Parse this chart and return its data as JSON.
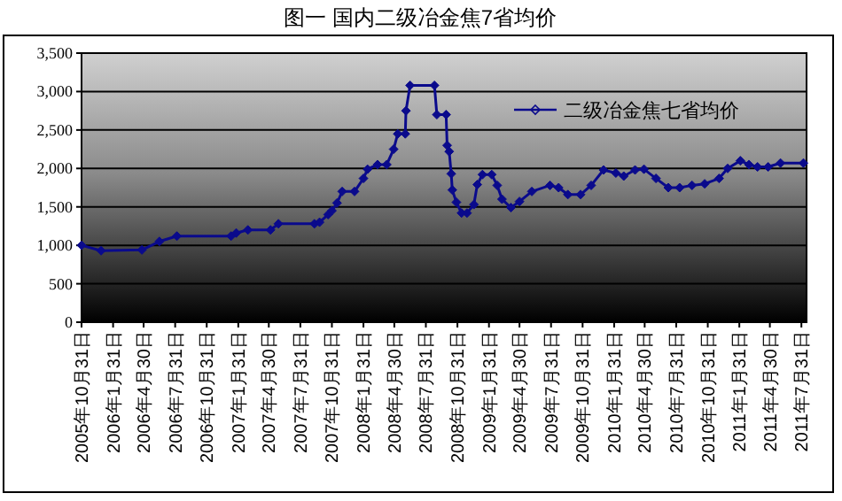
{
  "chart_data": {
    "type": "line",
    "title": "图一 国内二级冶金焦7省均价",
    "x": [
      "2005-10-31",
      "2005-12-27",
      "2006-04-25",
      "2006-06-15",
      "2006-08-05",
      "2007-01-10",
      "2007-01-25",
      "2007-02-28",
      "2007-05-05",
      "2007-05-28",
      "2007-09-10",
      "2007-09-25",
      "2007-10-20",
      "2007-10-31",
      "2007-11-15",
      "2007-11-30",
      "2008-01-05",
      "2008-01-31",
      "2008-02-12",
      "2008-03-12",
      "2008-04-08",
      "2008-04-28",
      "2008-05-10",
      "2008-06-01",
      "2008-06-03",
      "2008-06-15",
      "2008-08-25",
      "2008-09-01",
      "2008-09-28",
      "2008-10-01",
      "2008-10-07",
      "2008-10-13",
      "2008-10-16",
      "2008-10-28",
      "2008-11-12",
      "2008-11-28",
      "2008-12-18",
      "2008-12-28",
      "2009-01-12",
      "2009-02-08",
      "2009-02-24",
      "2009-03-10",
      "2009-04-05",
      "2009-04-30",
      "2009-06-05",
      "2009-07-28",
      "2009-08-22",
      "2009-09-18",
      "2009-10-25",
      "2009-11-25",
      "2009-12-31",
      "2010-02-05",
      "2010-02-28",
      "2010-04-02",
      "2010-04-28",
      "2010-06-02",
      "2010-07-08",
      "2010-08-10",
      "2010-09-15",
      "2010-10-22",
      "2010-12-03",
      "2010-12-28",
      "2011-02-03",
      "2011-02-28",
      "2011-03-25",
      "2011-04-25",
      "2011-05-31",
      "2011-08-06"
    ],
    "series": [
      {
        "name": "二级冶金焦七省均价",
        "color": "#0a0a8c",
        "values": [
          1000,
          930,
          940,
          1050,
          1120,
          1120,
          1160,
          1200,
          1200,
          1280,
          1280,
          1300,
          1400,
          1450,
          1550,
          1700,
          1700,
          1870,
          1990,
          2050,
          2050,
          2250,
          2450,
          2450,
          2750,
          3080,
          3080,
          2700,
          2700,
          2300,
          2220,
          1930,
          1720,
          1560,
          1420,
          1420,
          1530,
          1790,
          1920,
          1920,
          1780,
          1600,
          1490,
          1570,
          1700,
          1780,
          1750,
          1660,
          1660,
          1780,
          1980,
          1940,
          1900,
          1980,
          1990,
          1870,
          1750,
          1750,
          1780,
          1800,
          1870,
          2000,
          2100,
          2050,
          2020,
          2020,
          2070,
          2070
        ]
      }
    ],
    "xlim": [
      "2005-10-31",
      "2011-08-15"
    ],
    "xticks": [
      {
        "value": "2005-10-31",
        "label": "2005年10月31日"
      },
      {
        "value": "2006-01-31",
        "label": "2006年1月31日"
      },
      {
        "value": "2006-04-30",
        "label": "2006年4月30日"
      },
      {
        "value": "2006-07-31",
        "label": "2006年7月31日"
      },
      {
        "value": "2006-10-31",
        "label": "2006年10月31日"
      },
      {
        "value": "2007-01-31",
        "label": "2007年1月31日"
      },
      {
        "value": "2007-04-30",
        "label": "2007年4月30日"
      },
      {
        "value": "2007-07-31",
        "label": "2007年7月31日"
      },
      {
        "value": "2007-10-31",
        "label": "2007年10月31日"
      },
      {
        "value": "2008-01-31",
        "label": "2008年1月31日"
      },
      {
        "value": "2008-04-30",
        "label": "2008年4月30日"
      },
      {
        "value": "2008-07-31",
        "label": "2008年7月31日"
      },
      {
        "value": "2008-10-31",
        "label": "2008年10月31日"
      },
      {
        "value": "2009-01-31",
        "label": "2009年1月31日"
      },
      {
        "value": "2009-04-30",
        "label": "2009年4月30日"
      },
      {
        "value": "2009-07-31",
        "label": "2009年7月31日"
      },
      {
        "value": "2009-10-31",
        "label": "2009年10月31日"
      },
      {
        "value": "2010-01-31",
        "label": "2010年1月31日"
      },
      {
        "value": "2010-04-30",
        "label": "2010年4月30日"
      },
      {
        "value": "2010-07-31",
        "label": "2010年7月31日"
      },
      {
        "value": "2010-10-31",
        "label": "2010年10月31日"
      },
      {
        "value": "2011-01-31",
        "label": "2011年1月31日"
      },
      {
        "value": "2011-04-30",
        "label": "2011年4月30日"
      },
      {
        "value": "2011-07-31",
        "label": "2011年7月31日"
      }
    ],
    "ylim": [
      0,
      3500
    ],
    "yticks": [
      0,
      500,
      {
        "value": 1000,
        "label": "1,000"
      },
      {
        "value": 1500,
        "label": "1,500"
      },
      {
        "value": 2000,
        "label": "2,000"
      },
      {
        "value": 2500,
        "label": "2,500"
      },
      {
        "value": 3000,
        "label": "3,000"
      },
      {
        "value": 3500,
        "label": "3,500"
      }
    ],
    "grid": "y",
    "legend": "top right",
    "marker": "diamond",
    "line_style": "solid"
  }
}
